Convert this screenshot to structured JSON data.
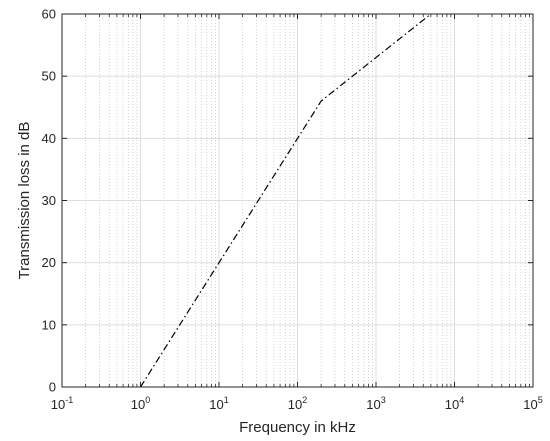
{
  "chart_data": {
    "type": "line",
    "xlabel": "Frequency in kHz",
    "ylabel": "Transmission loss in dB",
    "xscale": "log",
    "xlim": [
      0.1,
      100000
    ],
    "ylim": [
      0,
      60
    ],
    "grid": true,
    "minor_grid": true,
    "x_ticks": [
      {
        "base": "10",
        "exp": "-1"
      },
      {
        "base": "10",
        "exp": "0"
      },
      {
        "base": "10",
        "exp": "1"
      },
      {
        "base": "10",
        "exp": "2"
      },
      {
        "base": "10",
        "exp": "3"
      },
      {
        "base": "10",
        "exp": "4"
      },
      {
        "base": "10",
        "exp": "5"
      }
    ],
    "y_ticks": [
      "0",
      "10",
      "20",
      "30",
      "40",
      "50",
      "60"
    ],
    "series": [
      {
        "line_style": "dash-dot",
        "color": "#000000",
        "x": [
          1,
          200,
          5000
        ],
        "y": [
          0,
          46,
          60
        ]
      }
    ]
  }
}
